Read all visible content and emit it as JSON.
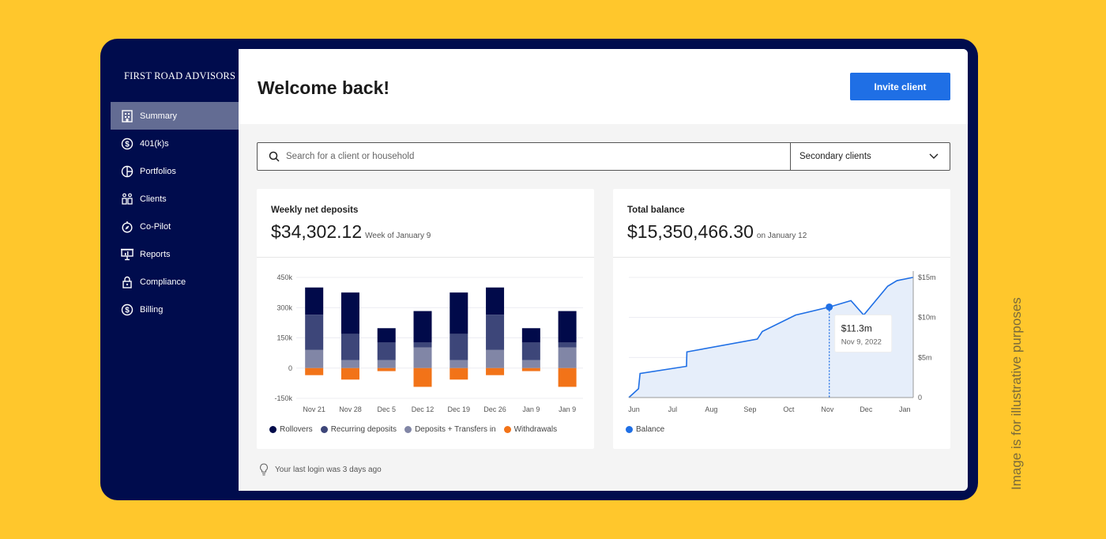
{
  "brand": "FIRST ROAD ADVISORS",
  "nav": [
    {
      "label": "Summary",
      "icon": "building-icon"
    },
    {
      "label": "401(k)s",
      "icon": "dollar-circle-icon"
    },
    {
      "label": "Portfolios",
      "icon": "pie-chart-icon"
    },
    {
      "label": "Clients",
      "icon": "people-icon"
    },
    {
      "label": "Co-Pilot",
      "icon": "compass-icon"
    },
    {
      "label": "Reports",
      "icon": "presentation-icon"
    },
    {
      "label": "Compliance",
      "icon": "lock-icon"
    },
    {
      "label": "Billing",
      "icon": "dollar-circle-icon"
    }
  ],
  "header": {
    "title": "Welcome back!",
    "invite_label": "Invite client"
  },
  "search": {
    "placeholder": "Search for a client or household",
    "filter": "Secondary clients"
  },
  "colors": {
    "rollovers": "#010A4A",
    "recurring": "#3D4679",
    "deposits": "#8186A6",
    "withdrawals": "#F27318",
    "balance": "#1F6FE5"
  },
  "deposits_card": {
    "label": "Weekly net deposits",
    "amount": "$34,302.12",
    "sub": "Week of January 9"
  },
  "balance_card": {
    "label": "Total balance",
    "amount": "$15,350,466.30",
    "sub": "on January 12",
    "tooltip_value": "$11.3m",
    "tooltip_date": "Nov 9, 2022"
  },
  "footer": "Your last login was 3 days ago",
  "side_note": "Image is for illustrative purposes",
  "chart_data": [
    {
      "type": "bar",
      "stacked": true,
      "title": "Weekly net deposits",
      "ylim": [
        -150000,
        450000
      ],
      "yticks": [
        "450k",
        "300k",
        "150k",
        "0",
        "-150k"
      ],
      "ytick_values": [
        450000,
        300000,
        150000,
        0,
        -150000
      ],
      "categories": [
        "Nov 21",
        "Nov 28",
        "Dec 5",
        "Dec 12",
        "Dec 19",
        "Dec 26",
        "Jan 9",
        "Jan 9"
      ],
      "series": [
        {
          "name": "Deposits + Transfers in",
          "key": "deposits",
          "values": [
            90000,
            40000,
            40000,
            103000,
            40000,
            90000,
            40000,
            103000
          ]
        },
        {
          "name": "Recurring deposits",
          "key": "recurring",
          "values": [
            175000,
            130000,
            87000,
            24000,
            130000,
            175000,
            87000,
            24000
          ]
        },
        {
          "name": "Rollovers",
          "key": "rollovers",
          "values": [
            135000,
            205000,
            71000,
            156000,
            205000,
            135000,
            71000,
            156000
          ]
        },
        {
          "name": "Withdrawals",
          "key": "withdrawals",
          "values": [
            -35000,
            -57000,
            -15000,
            -93000,
            -57000,
            -35000,
            -15000,
            -93000
          ]
        }
      ],
      "legend": [
        "Rollovers",
        "Recurring deposits",
        "Deposits + Transfers in",
        "Withdrawals"
      ]
    },
    {
      "type": "area",
      "title": "Total balance",
      "ylim": [
        0,
        15000000
      ],
      "yticks": [
        "$15m",
        "$10m",
        "$5m",
        "0"
      ],
      "ytick_values": [
        15000000,
        10000000,
        5000000,
        0
      ],
      "xticks": [
        "Jun",
        "Jul",
        "Aug",
        "Sep",
        "Oct",
        "Nov",
        "Dec",
        "Jan"
      ],
      "xlim": [
        -0.05,
        7.3
      ],
      "series": [
        {
          "name": "Balance",
          "x": [
            -0.05,
            0.2,
            0.24,
            1.44,
            1.45,
            3.27,
            3.4,
            4.26,
            5.13,
            5.69,
            6.02,
            6.64,
            6.88,
            7.29
          ],
          "y": [
            0,
            1100000,
            3000000,
            3900000,
            5700000,
            7300000,
            8250000,
            10300000,
            11300000,
            12100000,
            10300000,
            13900000,
            14600000,
            15000000
          ]
        }
      ],
      "highlight": {
        "x": 5.13,
        "y": 11300000
      },
      "legend": [
        "Balance"
      ]
    }
  ]
}
